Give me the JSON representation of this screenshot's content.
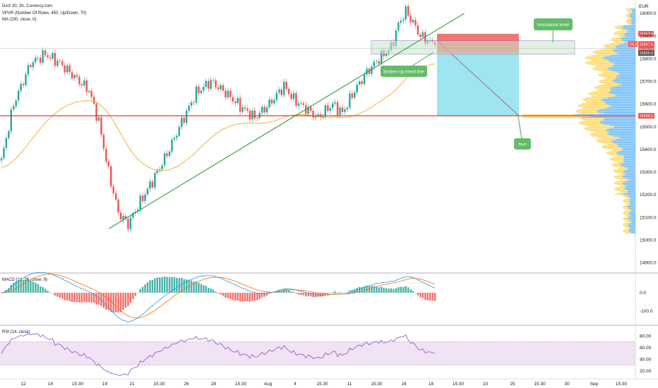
{
  "header": {
    "title": "DAX 30, 2h, Currency.com",
    "indicator_vpvr": "VPVR (Number Of Rows, 450, Up/Down, 70)",
    "indicator_ma": "MA (100, close, 0)",
    "macd_label": "MACD (12, 26, close, 9)",
    "rsi_label": "RSI (14, close)",
    "currency": "EUR"
  },
  "price_tags": {
    "top": {
      "label": "15910.0",
      "color": "#ef5350"
    },
    "symbol": {
      "label": "DE30",
      "color": "#ef5350"
    },
    "last": {
      "label": "15847.5",
      "color": "#ef5350"
    },
    "countdown": {
      "label": "01:01:02",
      "color": "#ef5350"
    },
    "entry": {
      "label": "15825.0",
      "color": "#555555"
    },
    "target": {
      "label": "15548.1",
      "color": "#ef5350"
    }
  },
  "annotations": {
    "resistance": "resistance level",
    "trendline": "broken up trend line",
    "hvn": "hvn"
  },
  "colors": {
    "up": "#26a69a",
    "down": "#ef5350",
    "ma": "#f5a623",
    "trend": "#2e9e3e",
    "macd": "#2196f3",
    "signal": "#ff6d00",
    "rsi": "#7e57c2",
    "vp_up": "#42a5f5",
    "vp_down": "#ffcc33",
    "bubble": "#66bb6a"
  },
  "chart_data": {
    "type": "candlestick",
    "y_axis": {
      "min": 14880,
      "max": 16050,
      "ticks": [
        16000,
        15900,
        15800,
        15700,
        15600,
        15500,
        15400,
        15300,
        15200,
        15100,
        15000,
        14900
      ]
    },
    "x_ticks": [
      "12",
      "14",
      "15:30",
      "19",
      "21",
      "15:30",
      "26",
      "28",
      "15:30",
      "Aug",
      "4",
      "15:30",
      "11",
      "15:30",
      "16",
      "18",
      "15:30",
      "23",
      "25",
      "15:30",
      "30",
      "Sep",
      "15:30"
    ],
    "candle_anchors": [
      [
        0,
        15350
      ],
      [
        5,
        15600
      ],
      [
        12,
        15780
      ],
      [
        18,
        15820
      ],
      [
        24,
        15780
      ],
      [
        30,
        15720
      ],
      [
        36,
        15660
      ],
      [
        40,
        15520
      ],
      [
        44,
        15300
      ],
      [
        48,
        15120
      ],
      [
        52,
        15070
      ],
      [
        56,
        15150
      ],
      [
        62,
        15260
      ],
      [
        68,
        15380
      ],
      [
        74,
        15520
      ],
      [
        80,
        15650
      ],
      [
        86,
        15700
      ],
      [
        92,
        15650
      ],
      [
        98,
        15590
      ],
      [
        104,
        15540
      ],
      [
        110,
        15600
      ],
      [
        116,
        15680
      ],
      [
        120,
        15620
      ],
      [
        125,
        15580
      ],
      [
        130,
        15540
      ],
      [
        136,
        15600
      ],
      [
        140,
        15560
      ],
      [
        145,
        15660
      ],
      [
        150,
        15740
      ],
      [
        155,
        15800
      ],
      [
        160,
        15850
      ],
      [
        163,
        15950
      ],
      [
        166,
        16010
      ],
      [
        169,
        15960
      ],
      [
        172,
        15900
      ],
      [
        175,
        15880
      ],
      [
        178,
        15860
      ]
    ],
    "ma": {
      "period": 100
    },
    "trend_line": {
      "from": [
        43,
        15050
      ],
      "to": [
        190,
        16000
      ]
    },
    "resistance_zone": {
      "from": 15820,
      "to": 15880
    },
    "position": {
      "entry": 15825.0,
      "stop": 15910.0,
      "target": 15548.1
    },
    "volume_profile": {
      "peak_price": 15548,
      "hvn_price": 15548
    },
    "macd": {
      "fast": 12,
      "slow": 26,
      "signal": 9,
      "ticks": [
        0.0,
        -100.0
      ]
    },
    "rsi": {
      "period": 14,
      "upper": 70,
      "lower": 30,
      "ticks": [
        80.0,
        60.0,
        40.0,
        20.0
      ]
    }
  }
}
